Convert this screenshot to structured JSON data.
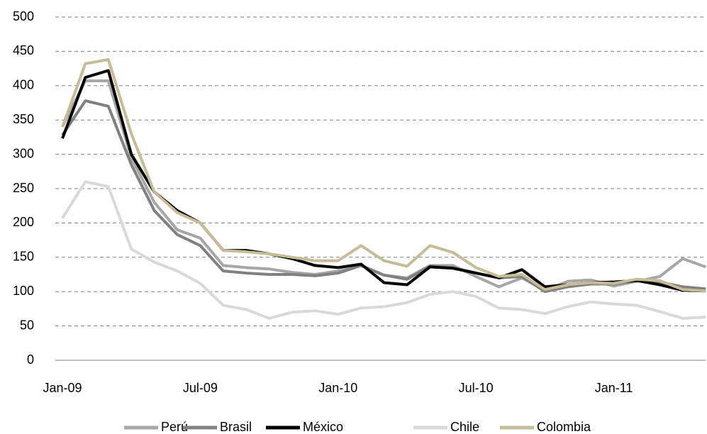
{
  "chart_data": {
    "type": "line",
    "categories": [
      "Jan-09",
      null,
      null,
      null,
      null,
      null,
      "Jul-09",
      null,
      null,
      null,
      null,
      null,
      "Jan-10",
      null,
      null,
      null,
      null,
      null,
      "Jul-10",
      null,
      null,
      null,
      null,
      null,
      "Jan-11",
      null,
      null,
      null,
      null
    ],
    "series": [
      {
        "name": "Perú",
        "color": "#a6a6a6",
        "values": [
          340,
          407,
          407,
          295,
          230,
          190,
          178,
          138,
          135,
          133,
          128,
          125,
          130,
          138,
          124,
          120,
          138,
          138,
          122,
          107,
          120,
          102,
          115,
          117,
          108,
          115,
          122,
          148,
          136
        ]
      },
      {
        "name": "Brasil",
        "color": "#808080",
        "values": [
          328,
          378,
          370,
          285,
          218,
          183,
          167,
          130,
          127,
          125,
          125,
          123,
          127,
          138,
          124,
          118,
          137,
          135,
          127,
          120,
          122,
          100,
          107,
          111,
          111,
          116,
          114,
          107,
          104
        ]
      },
      {
        "name": "México",
        "color": "#000000",
        "values": [
          323,
          412,
          422,
          300,
          245,
          218,
          200,
          160,
          160,
          155,
          148,
          138,
          135,
          140,
          113,
          110,
          136,
          134,
          127,
          120,
          132,
          107,
          110,
          113,
          114,
          116,
          110,
          102,
          101
        ]
      },
      {
        "name": "Chile",
        "color": "#d9d9d9",
        "values": [
          207,
          260,
          253,
          162,
          143,
          130,
          112,
          80,
          74,
          61,
          70,
          72,
          67,
          76,
          78,
          84,
          96,
          100,
          93,
          76,
          74,
          68,
          78,
          85,
          82,
          80,
          71,
          61,
          63
        ]
      },
      {
        "name": "Colombia",
        "color": "#c4bd97",
        "values": [
          340,
          432,
          438,
          330,
          245,
          215,
          200,
          160,
          158,
          155,
          150,
          145,
          145,
          167,
          145,
          137,
          167,
          157,
          135,
          122,
          125,
          103,
          110,
          113,
          112,
          118,
          116,
          103,
          101
        ]
      }
    ],
    "ylim": [
      0,
      500
    ],
    "yticks": [
      0,
      50,
      100,
      150,
      200,
      250,
      300,
      350,
      400,
      450,
      500
    ],
    "grid": true,
    "legend": "bottom"
  }
}
